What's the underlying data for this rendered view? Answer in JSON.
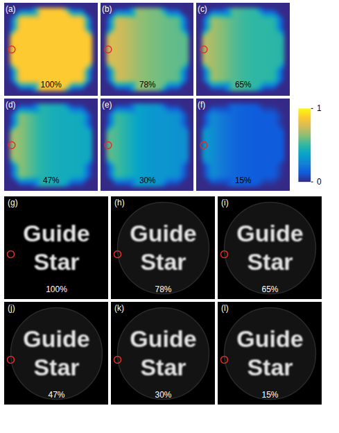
{
  "chart_data": [
    {
      "type": "heatmap",
      "panel": "(a)",
      "label": "100%",
      "guide_star": {
        "x": 0.2,
        "y": 4,
        "color": "#e0302a",
        "marker": "circle"
      },
      "cells": [
        [
          0,
          0,
          0,
          0.88,
          0.88,
          0.88,
          0,
          0,
          0
        ],
        [
          0,
          0.88,
          0.88,
          0.88,
          0.88,
          0.88,
          0.88,
          0.88,
          0
        ],
        [
          0,
          0.88,
          0.88,
          0.88,
          0.88,
          0.88,
          0.88,
          0.88,
          0
        ],
        [
          0.88,
          0.88,
          0.88,
          0.88,
          0.88,
          0.88,
          0.88,
          0.88,
          0.88
        ],
        [
          0.88,
          0.88,
          0.88,
          0.88,
          0.88,
          0.88,
          0.88,
          0.88,
          0.88
        ],
        [
          0.88,
          0.88,
          0.88,
          0.88,
          0.88,
          0.88,
          0.88,
          0.88,
          0.88
        ],
        [
          0,
          0.88,
          0.88,
          0.88,
          0.88,
          0.88,
          0.88,
          0.88,
          0
        ],
        [
          0,
          0.88,
          0.88,
          0.88,
          0.88,
          0.88,
          0.88,
          0.88,
          0
        ],
        [
          0,
          0,
          0,
          0.88,
          0.88,
          0.88,
          0,
          0,
          0
        ]
      ]
    },
    {
      "type": "heatmap",
      "panel": "(b)",
      "label": "78%",
      "guide_star": {
        "x": 0.2,
        "y": 4,
        "color": "#e0302a",
        "marker": "circle"
      },
      "cells": [
        [
          0,
          0,
          0,
          0.66,
          0.62,
          0.6,
          0,
          0,
          0
        ],
        [
          0,
          0.76,
          0.72,
          0.66,
          0.62,
          0.6,
          0.58,
          0.57,
          0
        ],
        [
          0,
          0.76,
          0.72,
          0.66,
          0.62,
          0.6,
          0.58,
          0.57,
          0
        ],
        [
          0.78,
          0.76,
          0.72,
          0.66,
          0.62,
          0.6,
          0.58,
          0.57,
          0.56
        ],
        [
          0.78,
          0.76,
          0.72,
          0.66,
          0.62,
          0.6,
          0.58,
          0.57,
          0.56
        ],
        [
          0.78,
          0.76,
          0.72,
          0.66,
          0.62,
          0.6,
          0.58,
          0.57,
          0.56
        ],
        [
          0,
          0.76,
          0.72,
          0.66,
          0.62,
          0.6,
          0.58,
          0.57,
          0
        ],
        [
          0,
          0.76,
          0.72,
          0.66,
          0.62,
          0.6,
          0.58,
          0.57,
          0
        ],
        [
          0,
          0,
          0,
          0.66,
          0.62,
          0.6,
          0,
          0,
          0
        ]
      ]
    },
    {
      "type": "heatmap",
      "panel": "(c)",
      "label": "65%",
      "guide_star": {
        "x": 0.2,
        "y": 4,
        "color": "#e0302a",
        "marker": "circle"
      },
      "cells": [
        [
          0,
          0,
          0,
          0.56,
          0.52,
          0.5,
          0,
          0,
          0
        ],
        [
          0,
          0.68,
          0.62,
          0.56,
          0.52,
          0.5,
          0.5,
          0.49,
          0
        ],
        [
          0,
          0.68,
          0.62,
          0.56,
          0.52,
          0.5,
          0.5,
          0.49,
          0
        ],
        [
          0.72,
          0.68,
          0.62,
          0.56,
          0.52,
          0.5,
          0.5,
          0.49,
          0.48
        ],
        [
          0.72,
          0.68,
          0.62,
          0.56,
          0.52,
          0.5,
          0.5,
          0.49,
          0.48
        ],
        [
          0.72,
          0.68,
          0.62,
          0.56,
          0.52,
          0.5,
          0.5,
          0.49,
          0.48
        ],
        [
          0,
          0.68,
          0.62,
          0.56,
          0.52,
          0.5,
          0.5,
          0.49,
          0
        ],
        [
          0,
          0.68,
          0.62,
          0.56,
          0.52,
          0.5,
          0.5,
          0.49,
          0
        ],
        [
          0,
          0,
          0,
          0.56,
          0.52,
          0.5,
          0,
          0,
          0
        ]
      ]
    },
    {
      "type": "heatmap",
      "panel": "(d)",
      "label": "47%",
      "guide_star": {
        "x": 0.2,
        "y": 4,
        "color": "#e0302a",
        "marker": "circle"
      },
      "cells": [
        [
          0,
          0,
          0,
          0.48,
          0.44,
          0.42,
          0,
          0,
          0
        ],
        [
          0,
          0.64,
          0.56,
          0.48,
          0.44,
          0.42,
          0.42,
          0.41,
          0
        ],
        [
          0,
          0.64,
          0.56,
          0.48,
          0.44,
          0.42,
          0.42,
          0.41,
          0
        ],
        [
          0.68,
          0.64,
          0.56,
          0.48,
          0.44,
          0.42,
          0.42,
          0.41,
          0.4
        ],
        [
          0.68,
          0.64,
          0.56,
          0.48,
          0.44,
          0.42,
          0.42,
          0.41,
          0.4
        ],
        [
          0.68,
          0.64,
          0.56,
          0.48,
          0.44,
          0.42,
          0.42,
          0.41,
          0.4
        ],
        [
          0,
          0.64,
          0.56,
          0.48,
          0.44,
          0.42,
          0.42,
          0.41,
          0
        ],
        [
          0,
          0.64,
          0.56,
          0.48,
          0.44,
          0.42,
          0.42,
          0.41,
          0
        ],
        [
          0,
          0,
          0,
          0.48,
          0.44,
          0.42,
          0,
          0,
          0
        ]
      ]
    },
    {
      "type": "heatmap",
      "panel": "(e)",
      "label": "30%",
      "guide_star": {
        "x": 0.2,
        "y": 4,
        "color": "#e0302a",
        "marker": "circle"
      },
      "cells": [
        [
          0,
          0,
          0,
          0.38,
          0.34,
          0.32,
          0,
          0,
          0
        ],
        [
          0,
          0.54,
          0.46,
          0.38,
          0.34,
          0.32,
          0.32,
          0.31,
          0
        ],
        [
          0,
          0.54,
          0.46,
          0.38,
          0.34,
          0.32,
          0.32,
          0.31,
          0
        ],
        [
          0.58,
          0.54,
          0.46,
          0.38,
          0.34,
          0.32,
          0.32,
          0.31,
          0.3
        ],
        [
          0.58,
          0.54,
          0.46,
          0.38,
          0.34,
          0.32,
          0.32,
          0.31,
          0.3
        ],
        [
          0.58,
          0.54,
          0.46,
          0.38,
          0.34,
          0.32,
          0.32,
          0.31,
          0.3
        ],
        [
          0,
          0.54,
          0.46,
          0.38,
          0.34,
          0.32,
          0.32,
          0.31,
          0
        ],
        [
          0,
          0.54,
          0.46,
          0.38,
          0.34,
          0.32,
          0.32,
          0.31,
          0
        ],
        [
          0,
          0,
          0,
          0.38,
          0.34,
          0.32,
          0,
          0,
          0
        ]
      ]
    },
    {
      "type": "heatmap",
      "panel": "(f)",
      "label": "15%",
      "guide_star": {
        "x": 0.2,
        "y": 4,
        "color": "#e0302a",
        "marker": "circle"
      },
      "cells": [
        [
          0,
          0,
          0,
          0.17,
          0.14,
          0.13,
          0,
          0,
          0
        ],
        [
          0,
          0.3,
          0.22,
          0.17,
          0.14,
          0.13,
          0.13,
          0.13,
          0
        ],
        [
          0,
          0.3,
          0.22,
          0.17,
          0.14,
          0.13,
          0.13,
          0.13,
          0
        ],
        [
          0.36,
          0.3,
          0.22,
          0.17,
          0.14,
          0.13,
          0.13,
          0.13,
          0.13
        ],
        [
          0.36,
          0.3,
          0.22,
          0.17,
          0.14,
          0.13,
          0.13,
          0.13,
          0.13
        ],
        [
          0.36,
          0.3,
          0.22,
          0.17,
          0.14,
          0.13,
          0.13,
          0.13,
          0.13
        ],
        [
          0,
          0.3,
          0.22,
          0.17,
          0.14,
          0.13,
          0.13,
          0.13,
          0
        ],
        [
          0,
          0.3,
          0.22,
          0.17,
          0.14,
          0.13,
          0.13,
          0.13,
          0
        ],
        [
          0,
          0,
          0,
          0.17,
          0.14,
          0.13,
          0,
          0,
          0
        ]
      ]
    },
    {
      "type": "image",
      "panel": "(g)",
      "label": "100%",
      "texts": [
        "Guide",
        "Star"
      ],
      "guide_star": {
        "x": 0.06,
        "y": 0.56,
        "color": "#e0302a",
        "marker": "circle"
      }
    },
    {
      "type": "image",
      "panel": "(h)",
      "label": "78%",
      "texts": [
        "Guide",
        "Star"
      ],
      "guide_star": {
        "x": 0.06,
        "y": 0.56,
        "color": "#e0302a",
        "marker": "circle"
      }
    },
    {
      "type": "image",
      "panel": "(i)",
      "label": "65%",
      "texts": [
        "Guide",
        "Star"
      ],
      "guide_star": {
        "x": 0.06,
        "y": 0.56,
        "color": "#e0302a",
        "marker": "circle"
      }
    },
    {
      "type": "image",
      "panel": "(j)",
      "label": "47%",
      "texts": [
        "Guide",
        "Star"
      ],
      "guide_star": {
        "x": 0.06,
        "y": 0.56,
        "color": "#e0302a",
        "marker": "circle"
      }
    },
    {
      "type": "image",
      "panel": "(k)",
      "label": "30%",
      "texts": [
        "Guide",
        "Star"
      ],
      "guide_star": {
        "x": 0.06,
        "y": 0.56,
        "color": "#e0302a",
        "marker": "circle"
      }
    },
    {
      "type": "image",
      "panel": "(l)",
      "label": "15%",
      "texts": [
        "Guide",
        "Star"
      ],
      "guide_star": {
        "x": 0.06,
        "y": 0.56,
        "color": "#e0302a",
        "marker": "circle"
      }
    }
  ],
  "colorbar": {
    "range": [
      0,
      1
    ],
    "ticks": [
      0,
      1
    ],
    "colors": [
      "#352a87",
      "#0f5cdd",
      "#1481d6",
      "#06a4ca",
      "#2eb7a4",
      "#87bf77",
      "#d1bb59",
      "#fec832",
      "#f9fb0e"
    ]
  }
}
